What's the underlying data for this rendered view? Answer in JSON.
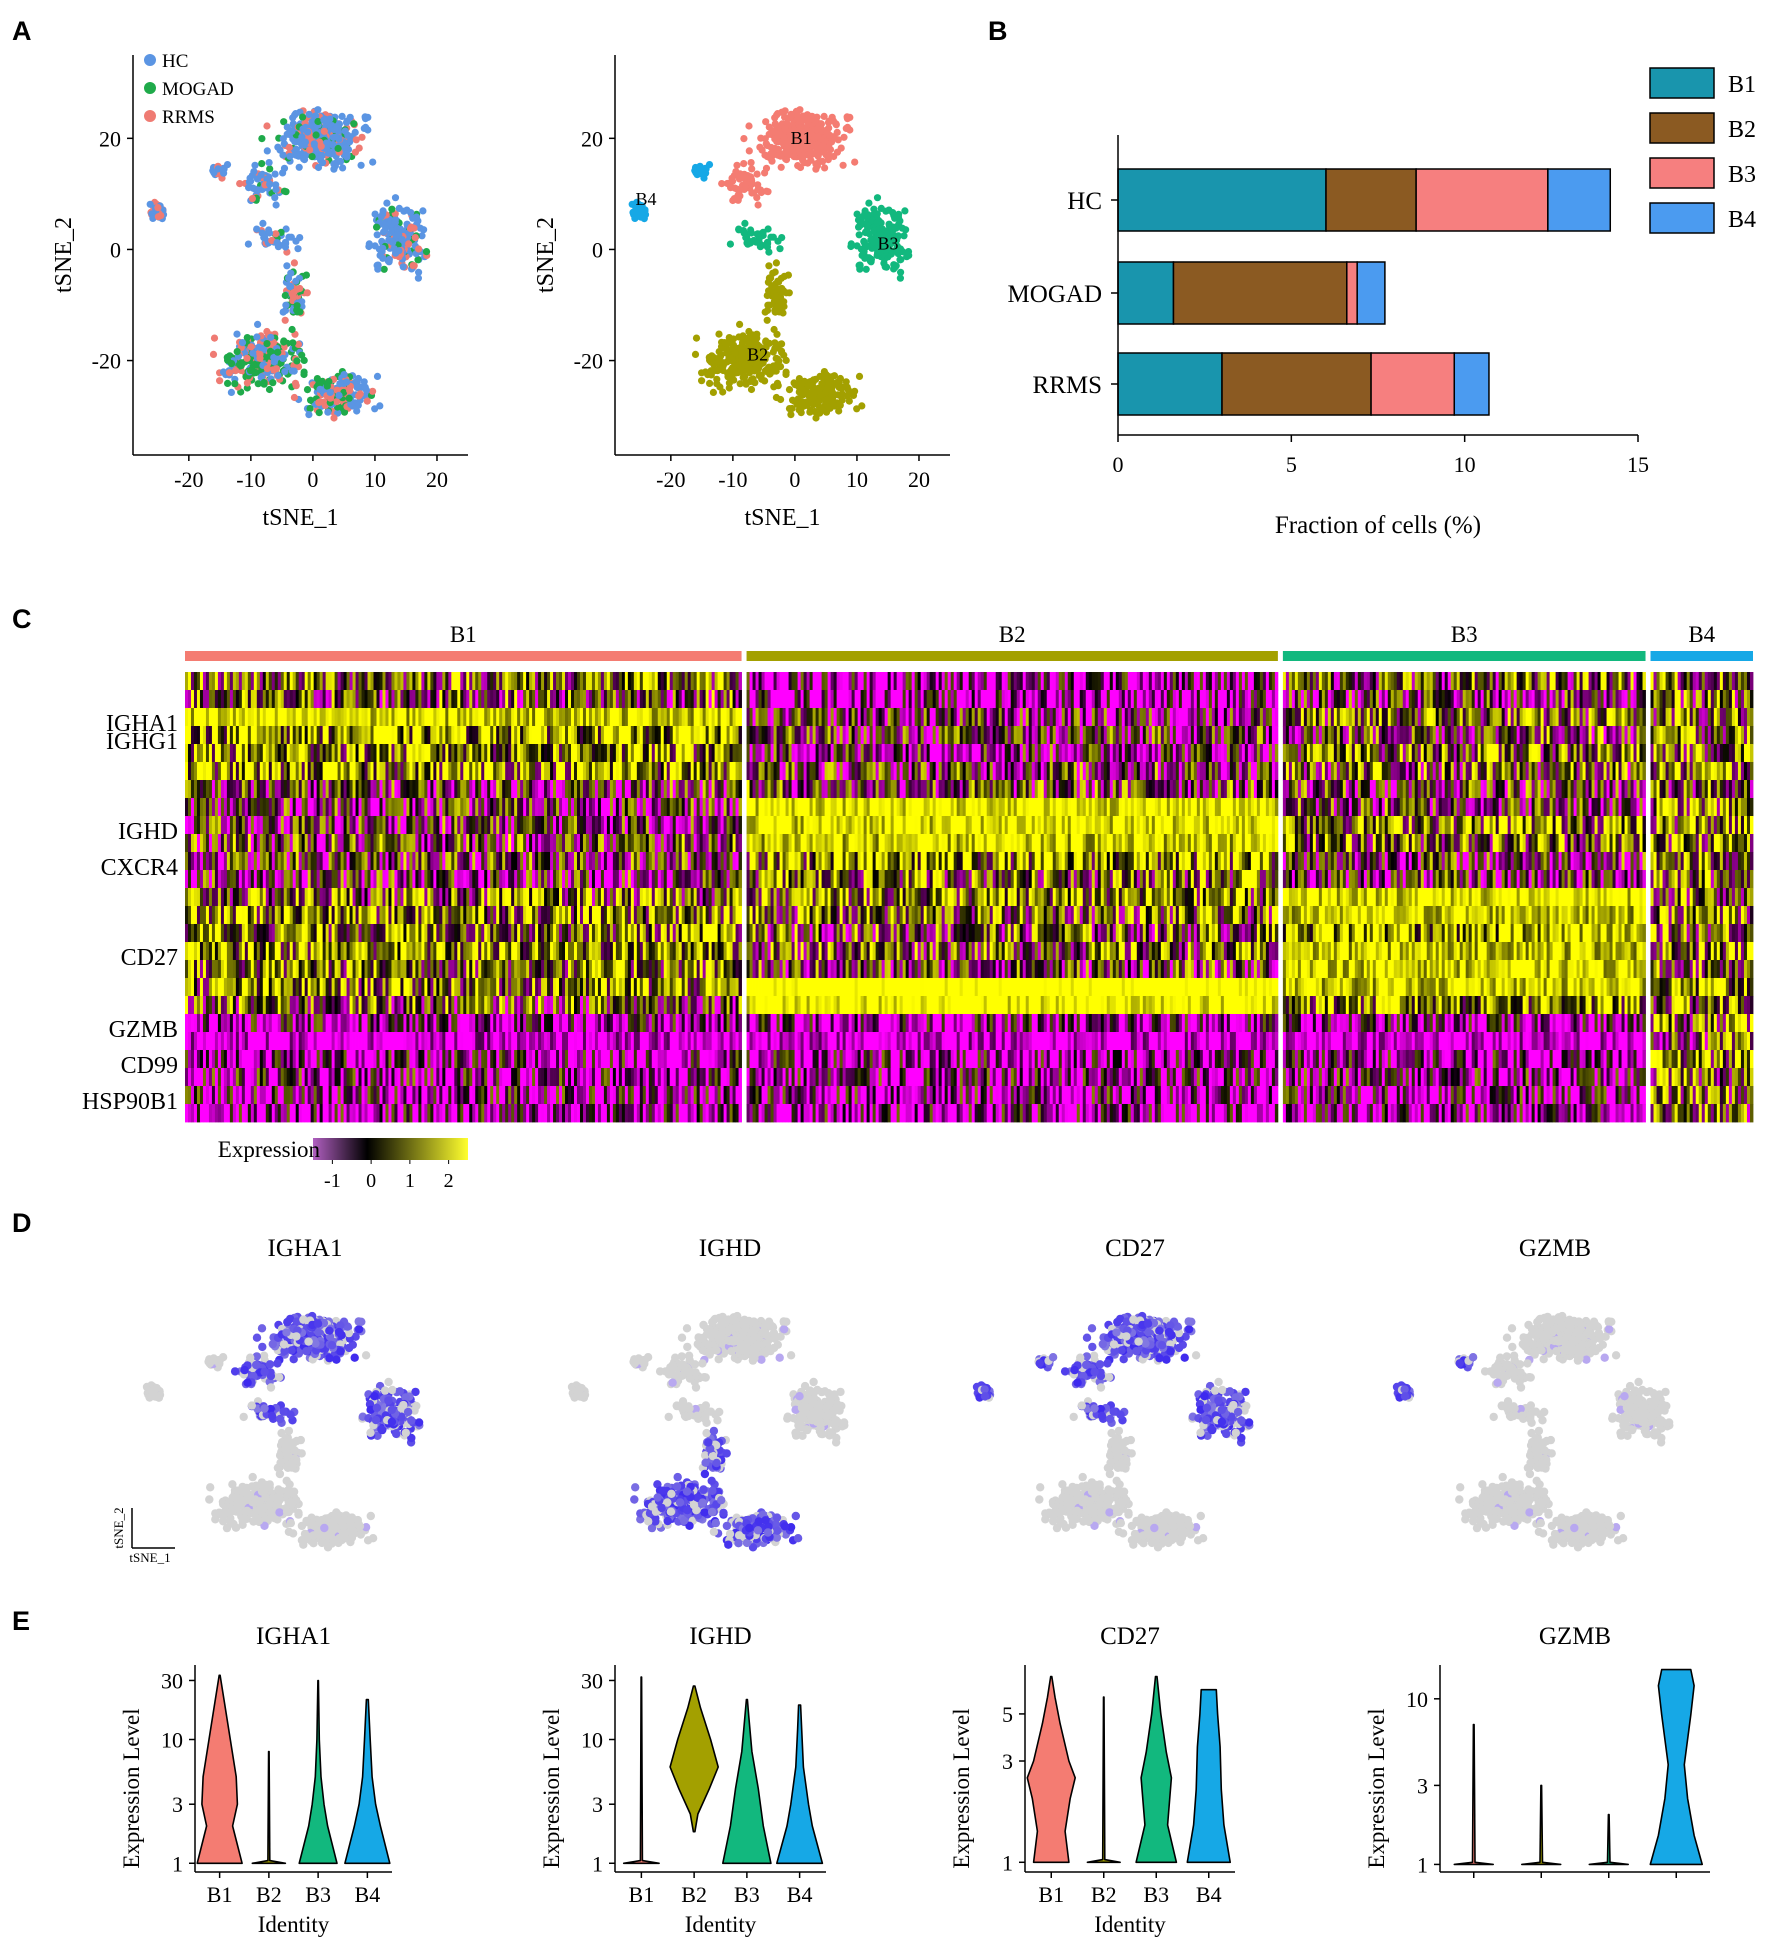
{
  "panels": {
    "a": "A",
    "b": "B",
    "c": "C",
    "d": "D",
    "e": "E"
  },
  "colors": {
    "hc": "#5b95e3",
    "mogad": "#1faa4a",
    "rrms": "#ef7b73",
    "b1": "#f47c72",
    "b2": "#a3a000",
    "b3": "#12b87e",
    "b4": "#16a8e6",
    "bar_b1": "#1995ad",
    "bar_b2": "#8b5a22",
    "bar_b3": "#f67f7f",
    "bar_b4": "#4b9bf0",
    "feat_low": "#d3d3d3",
    "feat_high": "#3621f0",
    "heat_low": "#ff00ff",
    "heat_mid": "#000000",
    "heat_high": "#ffff00"
  },
  "panel_a": {
    "plot1": {
      "xlabel": "tSNE_1",
      "ylabel": "tSNE_2",
      "xticks": [
        "-20",
        "-10",
        "0",
        "10",
        "20"
      ],
      "xtick_values": [
        -20,
        -10,
        0,
        10,
        20
      ],
      "yticks": [
        "20",
        "0",
        "-20"
      ],
      "ytick_values": [
        20,
        0,
        -20
      ],
      "xlim": [
        -29,
        25
      ],
      "ylim": [
        -37,
        35
      ],
      "legend": [
        {
          "label": "HC",
          "color_key": "hc"
        },
        {
          "label": "MOGAD",
          "color_key": "mogad"
        },
        {
          "label": "RRMS",
          "color_key": "rrms"
        }
      ]
    },
    "plot2": {
      "xlabel": "tSNE_1",
      "ylabel": "tSNE_2",
      "xticks": [
        "-20",
        "-10",
        "0",
        "10",
        "20"
      ],
      "xtick_values": [
        -20,
        -10,
        0,
        10,
        20
      ],
      "yticks": [
        "20",
        "0",
        "-20"
      ],
      "ytick_values": [
        20,
        0,
        -20
      ],
      "xlim": [
        -29,
        25
      ],
      "ylim": [
        -37,
        35
      ],
      "cluster_labels": [
        {
          "label": "B1",
          "x": 1,
          "y": 19
        },
        {
          "label": "B2",
          "x": -6,
          "y": -20
        },
        {
          "label": "B3",
          "x": 15,
          "y": 0
        },
        {
          "label": "B4",
          "x": -24,
          "y": 8
        }
      ]
    }
  },
  "chart_data": [
    {
      "type": "bar",
      "orientation": "horizontal",
      "stacked": true,
      "categories": [
        "HC",
        "MOGAD",
        "RRMS"
      ],
      "series": [
        {
          "name": "B1",
          "values": [
            6.0,
            1.6,
            3.0
          ]
        },
        {
          "name": "B2",
          "values": [
            2.6,
            5.0,
            4.3
          ]
        },
        {
          "name": "B3",
          "values": [
            3.8,
            0.3,
            2.4
          ]
        },
        {
          "name": "B4",
          "values": [
            1.8,
            0.8,
            1.0
          ]
        }
      ],
      "xlabel": "Fraction of cells (%)",
      "xticks": [
        "0",
        "5",
        "10",
        "15"
      ],
      "xlim": [
        0,
        15
      ],
      "legend": [
        "B1",
        "B2",
        "B3",
        "B4"
      ]
    },
    {
      "type": "heatmap",
      "clusters": [
        {
          "name": "B1",
          "width_frac": 0.353
        },
        {
          "name": "B2",
          "width_frac": 0.337
        },
        {
          "name": "B3",
          "width_frac": 0.23
        },
        {
          "name": "B4",
          "width_frac": 0.065
        }
      ],
      "gene_labels": [
        "IGHA1",
        "IGHG1",
        "IGHD",
        "CXCR4",
        "CD27",
        "GZMB",
        "CD99",
        "HSP90B1"
      ],
      "rows": [
        {
          "label": "",
          "means": [
            0.6,
            -0.8,
            0.3,
            0.6
          ]
        },
        {
          "label": "",
          "means": [
            0.2,
            -1.0,
            -0.3,
            0.4
          ]
        },
        {
          "label": "IGHA1",
          "means": [
            1.6,
            -0.3,
            0.5,
            0.5
          ]
        },
        {
          "label": "IGHG1",
          "means": [
            1.3,
            -0.1,
            0.2,
            0.6
          ]
        },
        {
          "label": "",
          "means": [
            0.9,
            -0.3,
            0.6,
            0.7
          ]
        },
        {
          "label": "",
          "means": [
            1.0,
            0.0,
            0.3,
            0.7
          ]
        },
        {
          "label": "",
          "means": [
            -0.1,
            0.1,
            0.0,
            0.4
          ]
        },
        {
          "label": "",
          "means": [
            -0.2,
            1.8,
            0.0,
            0.7
          ]
        },
        {
          "label": "IGHD",
          "means": [
            -0.1,
            1.7,
            0.9,
            0.7
          ]
        },
        {
          "label": "",
          "means": [
            0.1,
            1.5,
            0.6,
            0.7
          ]
        },
        {
          "label": "CXCR4",
          "means": [
            0.0,
            1.0,
            -0.1,
            0.6
          ]
        },
        {
          "label": "",
          "means": [
            -0.2,
            0.6,
            -0.2,
            0.5
          ]
        },
        {
          "label": "",
          "means": [
            0.5,
            0.8,
            1.7,
            0.6
          ]
        },
        {
          "label": "",
          "means": [
            0.9,
            0.5,
            1.5,
            0.7
          ]
        },
        {
          "label": "",
          "means": [
            0.8,
            0.3,
            1.4,
            0.6
          ]
        },
        {
          "label": "CD27",
          "means": [
            1.0,
            0.5,
            1.5,
            0.7
          ]
        },
        {
          "label": "",
          "means": [
            0.7,
            0.0,
            1.6,
            0.6
          ]
        },
        {
          "label": "",
          "means": [
            0.8,
            2.4,
            1.5,
            0.8
          ]
        },
        {
          "label": "",
          "means": [
            0.3,
            2.0,
            1.0,
            0.6
          ]
        },
        {
          "label": "GZMB",
          "means": [
            -0.8,
            -0.9,
            -0.9,
            0.6
          ]
        },
        {
          "label": "",
          "means": [
            -1.3,
            -1.3,
            -1.3,
            0.2
          ]
        },
        {
          "label": "CD99",
          "means": [
            -0.8,
            -0.8,
            -0.8,
            0.9
          ]
        },
        {
          "label": "",
          "means": [
            -0.6,
            -0.7,
            -0.6,
            0.5
          ]
        },
        {
          "label": "HSP90B1",
          "means": [
            -0.7,
            -0.7,
            -0.7,
            0.5
          ]
        },
        {
          "label": "",
          "means": [
            -0.8,
            -0.8,
            -0.8,
            0.4
          ]
        }
      ],
      "colorbar": {
        "title": "Expression",
        "ticks": [
          "-1",
          "0",
          "1",
          "2"
        ],
        "range": [
          -1.5,
          2.5
        ]
      }
    },
    {
      "type": "scatter",
      "kind": "feature_plots",
      "panels": [
        {
          "title": "IGHA1",
          "high_clusters": [
            "B1",
            "B3"
          ]
        },
        {
          "title": "IGHD",
          "high_clusters": [
            "B2"
          ]
        },
        {
          "title": "CD27",
          "high_clusters": [
            "B1",
            "B3",
            "B4"
          ]
        },
        {
          "title": "GZMB",
          "high_clusters": [
            "B4"
          ]
        }
      ],
      "axis_labels": {
        "x": "tSNE_1",
        "y": "tSNE_2"
      }
    },
    {
      "type": "violin",
      "xlabel": "Identity",
      "ylabel": "Expression Level",
      "categories": [
        "B1",
        "B2",
        "B3",
        "B4"
      ],
      "plots": [
        {
          "title": "IGHA1",
          "yscale": "log",
          "ylim": [
            0.85,
            40
          ],
          "yticks": [
            "1",
            "3",
            "10",
            "30"
          ],
          "ytick_values": [
            1,
            3,
            10,
            30
          ],
          "show_xlabels": true,
          "violins": [
            {
              "max": 33,
              "profile": [
                [
                  1,
                  0.95
                ],
                [
                  2,
                  0.55
                ],
                [
                  3,
                  0.75
                ],
                [
                  5,
                  0.7
                ],
                [
                  10,
                  0.45
                ],
                [
                  20,
                  0.2
                ],
                [
                  33,
                  0.02
                ]
              ]
            },
            {
              "max": 8,
              "profile": [
                [
                  1,
                  0.7
                ],
                [
                  1.05,
                  0.04
                ],
                [
                  8,
                  0.01
                ]
              ]
            },
            {
              "max": 30,
              "profile": [
                [
                  1,
                  0.8
                ],
                [
                  2,
                  0.4
                ],
                [
                  3,
                  0.25
                ],
                [
                  5,
                  0.12
                ],
                [
                  10,
                  0.05
                ],
                [
                  30,
                  0.01
                ]
              ]
            },
            {
              "max": 21,
              "profile": [
                [
                  1,
                  0.95
                ],
                [
                  2,
                  0.55
                ],
                [
                  3,
                  0.35
                ],
                [
                  5,
                  0.2
                ],
                [
                  10,
                  0.12
                ],
                [
                  21,
                  0.04
                ]
              ]
            }
          ]
        },
        {
          "title": "IGHD",
          "yscale": "log",
          "ylim": [
            0.85,
            40
          ],
          "yticks": [
            "1",
            "3",
            "10",
            "30"
          ],
          "ytick_values": [
            1,
            3,
            10,
            30
          ],
          "show_xlabels": true,
          "violins": [
            {
              "max": 32,
              "profile": [
                [
                  1,
                  0.7
                ],
                [
                  1.05,
                  0.04
                ],
                [
                  32,
                  0.01
                ]
              ]
            },
            {
              "max": 27,
              "profile": [
                [
                  1.8,
                  0.03
                ],
                [
                  2.5,
                  0.15
                ],
                [
                  4,
                  0.6
                ],
                [
                  6,
                  0.95
                ],
                [
                  10,
                  0.65
                ],
                [
                  18,
                  0.25
                ],
                [
                  27,
                  0.03
                ]
              ]
            },
            {
              "max": 21,
              "profile": [
                [
                  1,
                  0.95
                ],
                [
                  2,
                  0.65
                ],
                [
                  4,
                  0.45
                ],
                [
                  8,
                  0.2
                ],
                [
                  15,
                  0.08
                ],
                [
                  21,
                  0.02
                ]
              ]
            },
            {
              "max": 19,
              "profile": [
                [
                  1,
                  0.9
                ],
                [
                  2,
                  0.5
                ],
                [
                  3,
                  0.35
                ],
                [
                  6,
                  0.15
                ],
                [
                  12,
                  0.08
                ],
                [
                  19,
                  0.04
                ]
              ]
            }
          ]
        },
        {
          "title": "CD27",
          "yscale": "log",
          "ylim": [
            0.9,
            8.5
          ],
          "yticks": [
            "1",
            "3",
            "5"
          ],
          "ytick_values": [
            1,
            3,
            5
          ],
          "show_xlabels": true,
          "violins": [
            {
              "max": 7.5,
              "profile": [
                [
                  1,
                  0.7
                ],
                [
                  1.4,
                  0.55
                ],
                [
                  2,
                  0.75
                ],
                [
                  2.5,
                  0.95
                ],
                [
                  3,
                  0.7
                ],
                [
                  4.5,
                  0.35
                ],
                [
                  6,
                  0.15
                ],
                [
                  7.5,
                  0.02
                ]
              ]
            },
            {
              "max": 6,
              "profile": [
                [
                  1,
                  0.65
                ],
                [
                  1.03,
                  0.04
                ],
                [
                  6,
                  0.01
                ]
              ]
            },
            {
              "max": 7.5,
              "profile": [
                [
                  1,
                  0.8
                ],
                [
                  1.5,
                  0.45
                ],
                [
                  2.5,
                  0.6
                ],
                [
                  3.3,
                  0.4
                ],
                [
                  5,
                  0.18
                ],
                [
                  7.5,
                  0.03
                ]
              ]
            },
            {
              "max": 6.5,
              "profile": [
                [
                  1,
                  0.85
                ],
                [
                  1.5,
                  0.6
                ],
                [
                  2.2,
                  0.5
                ],
                [
                  3.5,
                  0.45
                ],
                [
                  5,
                  0.35
                ],
                [
                  6.5,
                  0.3
                ]
              ]
            }
          ]
        },
        {
          "title": "GZMB",
          "yscale": "log",
          "ylim": [
            0.9,
            16
          ],
          "yticks": [
            "1",
            "3",
            "10"
          ],
          "ytick_values": [
            1,
            3,
            10
          ],
          "show_xlabels": false,
          "violins": [
            {
              "max": 7,
              "profile": [
                [
                  1,
                  0.6
                ],
                [
                  1.03,
                  0.04
                ],
                [
                  7,
                  0.01
                ]
              ]
            },
            {
              "max": 3,
              "profile": [
                [
                  1,
                  0.6
                ],
                [
                  1.03,
                  0.04
                ],
                [
                  3,
                  0.01
                ]
              ]
            },
            {
              "max": 2,
              "profile": [
                [
                  1,
                  0.6
                ],
                [
                  1.03,
                  0.04
                ],
                [
                  2,
                  0.01
                ]
              ]
            },
            {
              "max": 15,
              "profile": [
                [
                  1,
                  0.8
                ],
                [
                  1.5,
                  0.55
                ],
                [
                  2.5,
                  0.35
                ],
                [
                  4,
                  0.25
                ],
                [
                  8,
                  0.45
                ],
                [
                  12,
                  0.55
                ],
                [
                  15,
                  0.45
                ]
              ]
            }
          ]
        }
      ]
    }
  ]
}
